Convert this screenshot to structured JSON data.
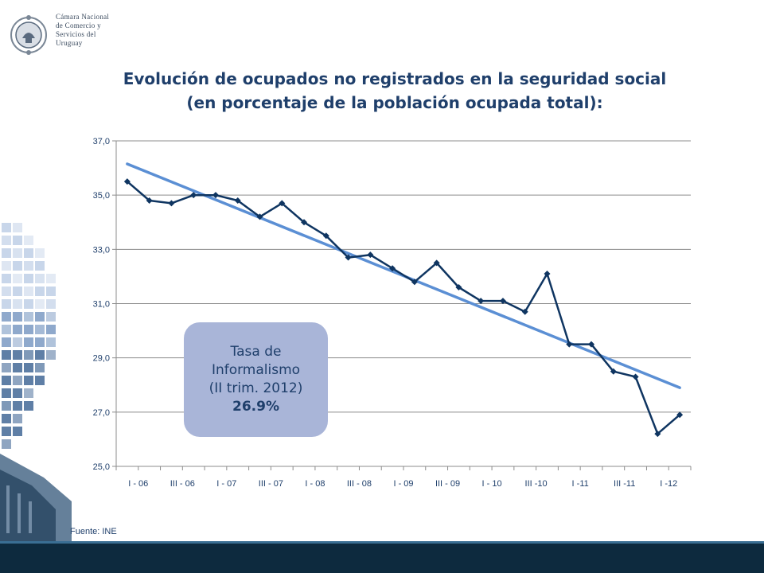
{
  "header": {
    "org_name_lines": [
      "Cámara Nacional",
      "de Comercio y",
      "Servicios del",
      "Uruguay"
    ],
    "logo_icon": "chamber-seal-icon"
  },
  "colors": {
    "title": "#1f3f6b",
    "series_line": "#0f3561",
    "trend_line": "#5b8fd4",
    "callout_bg": "#a9b5d8",
    "footer": "#0d2a3e"
  },
  "callout": {
    "line1": "Tasa de",
    "line2": "Informalismo",
    "line3": "(II trim. 2012)",
    "value": "26.9%"
  },
  "source": "Fuente: INE",
  "chart_data": {
    "type": "line",
    "title_lines": [
      "Evolución de ocupados no registrados en la seguridad social",
      "(en porcentaje de la población ocupada total):"
    ],
    "xlabel": "",
    "ylabel": "",
    "ylim": [
      25,
      37
    ],
    "yticks": [
      "25,0",
      "27,0",
      "29,0",
      "31,0",
      "33,0",
      "35,0",
      "37,0"
    ],
    "x_tick_labels": [
      "I - 06",
      "III - 06",
      "I - 07",
      "III - 07",
      "I - 08",
      "III - 08",
      "I - 09",
      "III - 09",
      "I - 10",
      "III -10",
      "I -11",
      "III -11",
      "I -12"
    ],
    "grid": "horizontal",
    "legend": "none",
    "series": [
      {
        "values": [
          35.5,
          34.8,
          34.7,
          35.0,
          35.0,
          34.8,
          34.2,
          34.7,
          34.0,
          33.5,
          32.7,
          32.8,
          32.3,
          31.8,
          32.5,
          31.6,
          31.1,
          31.1,
          30.7,
          32.1,
          29.5,
          29.5,
          28.5,
          28.3,
          26.2,
          26.9
        ]
      }
    ],
    "trendline": {
      "start": 36.15,
      "end": 27.9
    }
  }
}
